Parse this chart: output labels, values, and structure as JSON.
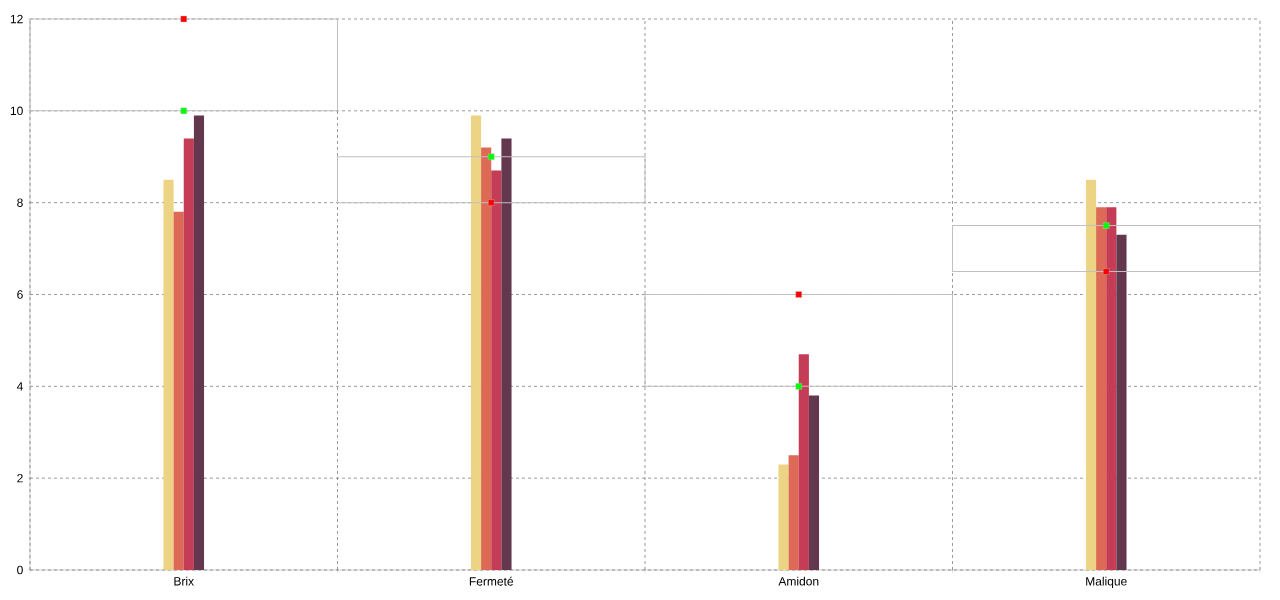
{
  "chart_data": {
    "type": "bar",
    "categories": [
      "Brix",
      "Fermeté",
      "Amidon",
      "Malique"
    ],
    "series": [
      {
        "color": "#edd384",
        "values": [
          8.5,
          9.9,
          2.3,
          8.5
        ]
      },
      {
        "color": "#dd6a56",
        "values": [
          7.8,
          9.2,
          2.5,
          7.9
        ]
      },
      {
        "color": "#c43c55",
        "values": [
          9.4,
          8.7,
          4.7,
          7.9
        ]
      },
      {
        "color": "#63374d",
        "values": [
          9.9,
          9.4,
          3.8,
          7.3
        ]
      },
      {
        "type": "bar",
        "color": "#c0c0c0",
        "base": [
          10,
          8,
          4,
          6.5
        ],
        "values": [
          2,
          1,
          2,
          1
        ]
      },
      {
        "type": "scatter",
        "color": "#00ff00",
        "values": [
          10,
          9,
          4,
          7.5
        ]
      },
      {
        "type": "scatter",
        "color": "#ff0000",
        "values": [
          12,
          8,
          6,
          6.5
        ]
      }
    ],
    "ylim": [
      0,
      12
    ],
    "yticks": [
      0,
      2,
      4,
      6,
      8,
      10,
      12
    ],
    "grid": true,
    "marker": "square"
  }
}
